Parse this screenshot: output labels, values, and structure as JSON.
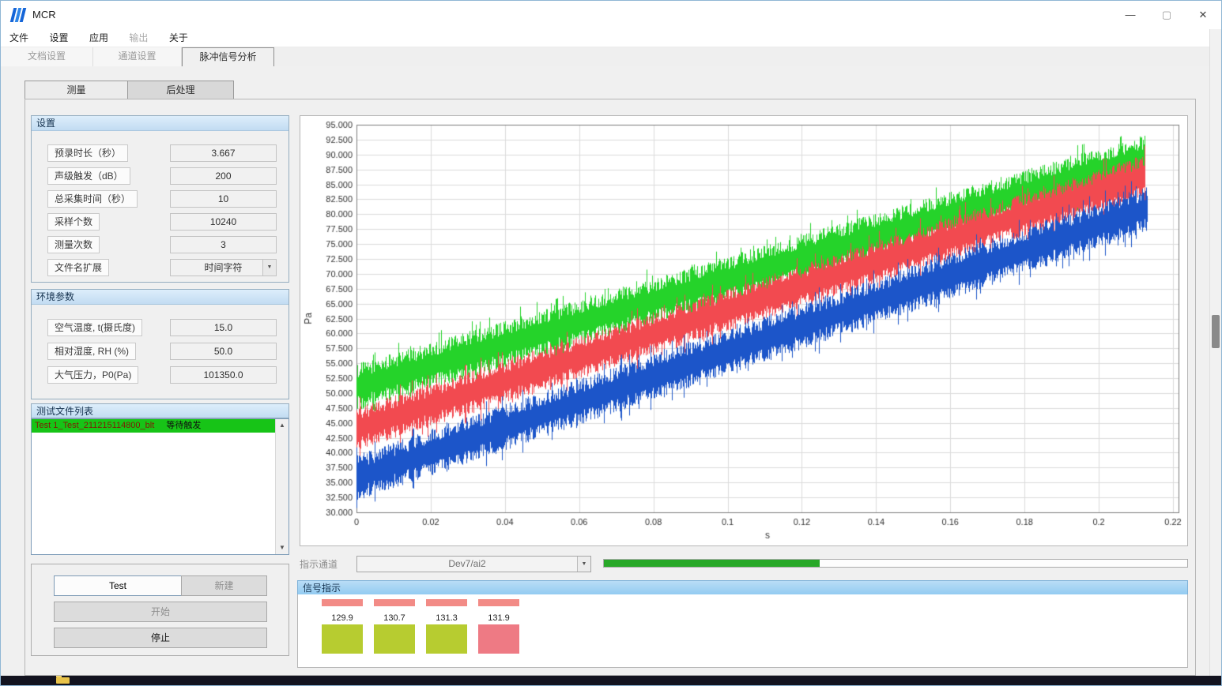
{
  "window": {
    "title": "MCR",
    "minimize": "—",
    "maximize": "▢",
    "close": "✕"
  },
  "menubar": {
    "items": [
      {
        "label": "文件",
        "enabled": true
      },
      {
        "label": "设置",
        "enabled": true
      },
      {
        "label": "应用",
        "enabled": true
      },
      {
        "label": "输出",
        "enabled": false
      },
      {
        "label": "关于",
        "enabled": true
      }
    ]
  },
  "tabs": {
    "items": [
      {
        "label": "文档设置",
        "active": false
      },
      {
        "label": "通道设置",
        "active": false
      },
      {
        "label": "脉冲信号分析",
        "active": true
      }
    ]
  },
  "subtabs": {
    "measure": "测量",
    "post": "后处理"
  },
  "settings": {
    "title": "设置",
    "fields": [
      {
        "label": "预录时长（秒）",
        "value": "3.667"
      },
      {
        "label": "声级触发（dB）",
        "value": "200"
      },
      {
        "label": "总采集时间（秒）",
        "value": "10"
      },
      {
        "label": "采样个数",
        "value": "10240"
      },
      {
        "label": "测量次数",
        "value": "3"
      },
      {
        "label": "文件名扩展",
        "value": "时间字符"
      }
    ]
  },
  "environment": {
    "title": "环境参数",
    "fields": [
      {
        "label": "空气温度, t(摄氏度)",
        "value": "15.0"
      },
      {
        "label": "相对湿度, RH (%)",
        "value": "50.0"
      },
      {
        "label": "大气压力，P0(Pa)",
        "value": "101350.0"
      }
    ]
  },
  "file_list": {
    "title": "测试文件列表",
    "items": [
      {
        "name": "Test 1_Test_211215114800_blt",
        "status": "等待触发"
      }
    ]
  },
  "controls": {
    "test": "Test",
    "new": "新建",
    "start": "开始",
    "stop": "停止"
  },
  "indicator": {
    "label": "指示通道",
    "channel": "Dev7/ai2",
    "progress_percent": 37,
    "progress_color": "#28a828"
  },
  "signal": {
    "title": "信号指示",
    "bar_color": "#f28b86",
    "meters": [
      {
        "value": "129.9",
        "block_color": "#b7cc30"
      },
      {
        "value": "130.7",
        "block_color": "#b7cc30"
      },
      {
        "value": "131.3",
        "block_color": "#b7cc30"
      },
      {
        "value": "131.9",
        "block_color": "#ee7a84"
      }
    ]
  },
  "chart_data": {
    "type": "line",
    "title": "",
    "xlabel": "s",
    "ylabel": "Pa",
    "xlim": [
      0,
      0.22
    ],
    "ylim": [
      30,
      95
    ],
    "grid": true,
    "x_ticks": [
      "0",
      "0.02",
      "0.04",
      "0.06",
      "0.08",
      "0.1",
      "0.12",
      "0.14",
      "0.16",
      "0.18",
      "0.2",
      "0.22"
    ],
    "y_ticks": [
      "95.000",
      "92.500",
      "90.000",
      "87.500",
      "85.000",
      "82.500",
      "80.000",
      "77.500",
      "75.000",
      "72.500",
      "70.000",
      "67.500",
      "65.000",
      "62.500",
      "60.000",
      "57.500",
      "55.000",
      "52.500",
      "50.000",
      "47.500",
      "45.000",
      "42.500",
      "40.000",
      "37.500",
      "35.000",
      "32.500",
      "30.000"
    ],
    "series": [
      {
        "name": "trace-green",
        "color": "#25d32a",
        "x_start": 0,
        "x_end": 0.2125,
        "y_start": 51.0,
        "y_end": 89.4,
        "noise_halfwidth": 3.0
      },
      {
        "name": "trace-red",
        "color": "#f24a50",
        "x_start": 0,
        "x_end": 0.2125,
        "y_start": 44.0,
        "y_end": 86.4,
        "noise_halfwidth": 2.8
      },
      {
        "name": "trace-blue",
        "color": "#1c55c9",
        "x_start": 0,
        "x_end": 0.213,
        "y_start": 35.8,
        "y_end": 80.9,
        "noise_halfwidth": 3.0
      }
    ]
  }
}
